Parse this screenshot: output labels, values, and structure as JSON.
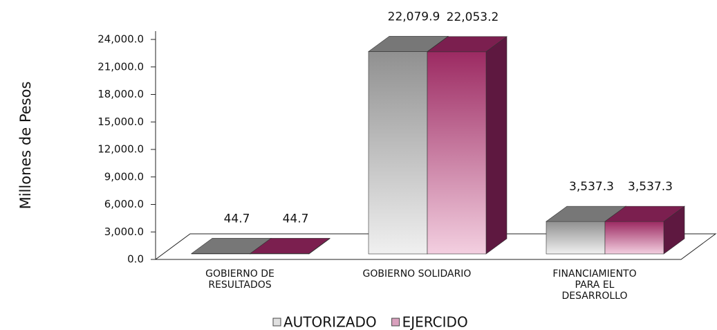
{
  "chart_data": {
    "type": "bar3d",
    "y_label": "Millones de Pesos",
    "categories": [
      "GOBIERNO DE RESULTADOS",
      "GOBIERNO SOLIDARIO",
      "FINANCIAMIENTO PARA EL DESARROLLO"
    ],
    "series": [
      {
        "name": "AUTORIZADO",
        "color": "#a0a0a0",
        "values": [
          44.7,
          22079.9,
          3537.3
        ],
        "value_labels": [
          "44.7",
          "22,079.9",
          "3,537.3"
        ]
      },
      {
        "name": "EJERCIDO",
        "color": "#9c2a62",
        "values": [
          44.7,
          22053.2,
          3537.3
        ],
        "value_labels": [
          "44.7",
          "22,053.2",
          "3,537.3"
        ]
      }
    ],
    "ylim": [
      0,
      24000
    ],
    "yticks": [
      {
        "value": 0,
        "label": "0.0"
      },
      {
        "value": 3000,
        "label": "3,000.0"
      },
      {
        "value": 6000,
        "label": "6,000.0"
      },
      {
        "value": 9000,
        "label": "9,000.0"
      },
      {
        "value": 12000,
        "label": "12,000.0"
      },
      {
        "value": 15000,
        "label": "15,000.0"
      },
      {
        "value": 18000,
        "label": "18,000.0"
      },
      {
        "value": 21000,
        "label": "21,000.0"
      },
      {
        "value": 24000,
        "label": "24,000.0"
      }
    ],
    "legend": "bottom"
  }
}
